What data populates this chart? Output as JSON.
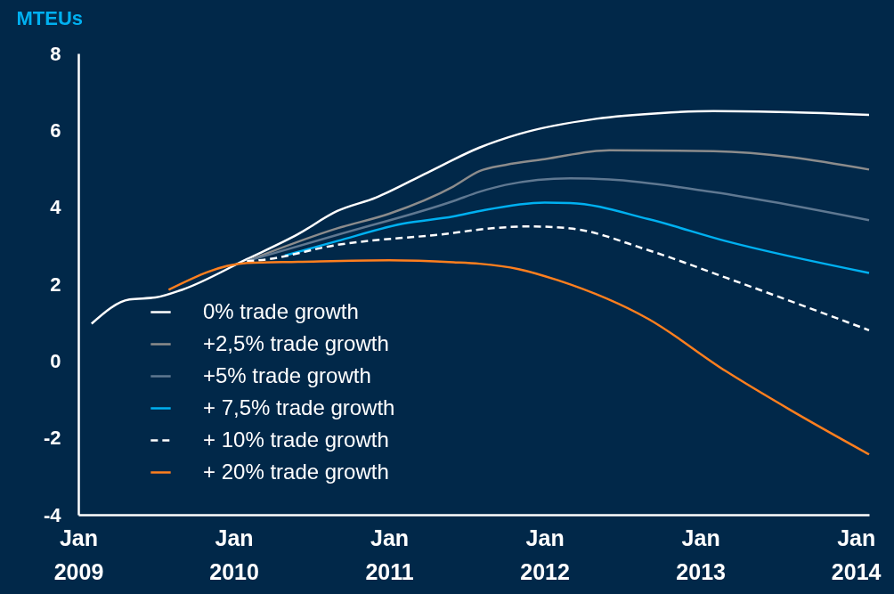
{
  "chart_data": {
    "type": "line",
    "ylabel": "MTEUs",
    "ylim": [
      -4,
      8
    ],
    "yticks": [
      -4,
      -2,
      0,
      2,
      4,
      6,
      8
    ],
    "xlim": [
      "2009-01",
      "2014-02"
    ],
    "xticks": [
      {
        "value": "2009-01",
        "label": "Jan 2009"
      },
      {
        "value": "2010-01",
        "label": "Jan 2010"
      },
      {
        "value": "2011-01",
        "label": "Jan 2011"
      },
      {
        "value": "2012-01",
        "label": "Jan 2012"
      },
      {
        "value": "2013-01",
        "label": "Jan 2013"
      },
      {
        "value": "2014-01",
        "label": "Jan 2014"
      }
    ],
    "legend": "bottom left",
    "grid": false,
    "series": [
      {
        "name": "0% trade growth",
        "color": "#ffffff",
        "x": [
          "2009-02",
          "2009-05",
          "2009-07",
          "2009-09",
          "2010-02",
          "2010-06",
          "2010-09",
          "2010-12",
          "2011-04",
          "2011-08",
          "2011-11",
          "2012-05",
          "2012-10",
          "2013-02",
          "2013-08",
          "2014-02"
        ],
        "values": [
          0.97,
          1.6,
          1.65,
          1.85,
          2.65,
          3.3,
          3.9,
          4.25,
          4.9,
          5.55,
          5.9,
          6.3,
          6.45,
          6.5,
          6.47,
          6.4
        ]
      },
      {
        "name": "+2,5% trade growth",
        "color": "#8c8c8c",
        "x": [
          "2010-02",
          "2010-09",
          "2011-01",
          "2011-06",
          "2011-08",
          "2011-10",
          "2012-01",
          "2012-06",
          "2013-02",
          "2014-02"
        ],
        "values": [
          2.6,
          3.45,
          3.83,
          4.54,
          4.94,
          5.1,
          5.25,
          5.48,
          5.46,
          4.98
        ]
      },
      {
        "name": "+5% trade growth",
        "color": "#5f7891",
        "x": [
          "2010-02",
          "2010-09",
          "2011-06",
          "2011-08",
          "2011-10",
          "2012-03",
          "2012-06",
          "2013-02",
          "2014-02"
        ],
        "values": [
          2.6,
          3.28,
          4.16,
          4.4,
          4.58,
          4.75,
          4.72,
          4.39,
          3.66
        ]
      },
      {
        "name": "+ 7,5% trade growth",
        "color": "#00b0f0",
        "x": [
          "2010-05",
          "2010-09",
          "2011-02",
          "2011-06",
          "2011-08",
          "2012-01",
          "2012-03",
          "2012-09",
          "2013-03",
          "2014-02"
        ],
        "values": [
          2.74,
          3.12,
          3.57,
          3.76,
          3.9,
          4.12,
          4.11,
          3.69,
          3.12,
          2.29
        ]
      },
      {
        "name": "+ 10% trade growth",
        "color": "#ffffff",
        "line_style": "dashed",
        "x": [
          "2010-02",
          "2010-03",
          "2010-09",
          "2011-06",
          "2011-08",
          "2011-12",
          "2012-03",
          "2012-09",
          "2013-03",
          "2014-02"
        ],
        "values": [
          2.6,
          2.62,
          3.02,
          3.33,
          3.42,
          3.5,
          3.45,
          2.88,
          2.17,
          0.8
        ]
      },
      {
        "name": "+ 20% trade growth",
        "color": "#ff7f1e",
        "x": [
          "2009-08",
          "2010-02",
          "2010-06",
          "2011-01",
          "2011-06",
          "2011-08",
          "2011-11",
          "2012-02",
          "2012-09",
          "2013-03",
          "2013-08",
          "2014-02"
        ],
        "values": [
          1.85,
          2.55,
          2.58,
          2.62,
          2.57,
          2.53,
          2.39,
          2.1,
          1.09,
          -0.26,
          -1.28,
          -2.43
        ]
      }
    ]
  }
}
